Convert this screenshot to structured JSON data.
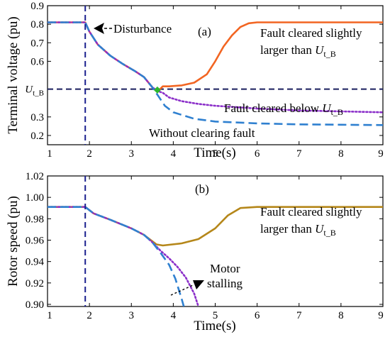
{
  "chart_data": [
    {
      "type": "line",
      "panel_label": "(a)",
      "xlabel": "Time(s)",
      "ylabel": "Terminal voltage (pu)",
      "xlim": [
        1,
        9
      ],
      "ylim": [
        0.15,
        0.9
      ],
      "xticks": [
        1,
        2,
        3,
        4,
        5,
        6,
        7,
        8,
        9
      ],
      "yticks": [
        {
          "value": 0.9,
          "label": "0.9"
        },
        {
          "value": 0.8,
          "label": "0.8"
        },
        {
          "value": 0.7,
          "label": "0.7"
        },
        {
          "value": 0.6,
          "label": "0.6"
        },
        {
          "value": 0.45,
          "label": "U_t_B"
        },
        {
          "value": 0.3,
          "label": "0.3"
        },
        {
          "value": 0.2,
          "label": "0.2"
        }
      ],
      "threshold": {
        "label": "U_t_B",
        "value": 0.45,
        "color": "#1a1f5e"
      },
      "disturbance_time": 1.9,
      "clear_point": {
        "x": 3.62,
        "y": 0.445,
        "color": "#2db82d"
      },
      "series": [
        {
          "name": "Fault cleared slightly larger than U_t_B",
          "color": "#f26522",
          "style": "solid",
          "points": [
            [
              1,
              0.81
            ],
            [
              1.9,
              0.81
            ],
            [
              2.0,
              0.76
            ],
            [
              2.2,
              0.69
            ],
            [
              2.5,
              0.63
            ],
            [
              2.8,
              0.585
            ],
            [
              3.1,
              0.545
            ],
            [
              3.3,
              0.515
            ],
            [
              3.5,
              0.46
            ],
            [
              3.62,
              0.435
            ],
            [
              3.75,
              0.465
            ],
            [
              3.9,
              0.465
            ],
            [
              4.2,
              0.47
            ],
            [
              4.5,
              0.485
            ],
            [
              4.8,
              0.53
            ],
            [
              5.0,
              0.6
            ],
            [
              5.2,
              0.68
            ],
            [
              5.4,
              0.74
            ],
            [
              5.6,
              0.785
            ],
            [
              5.8,
              0.805
            ],
            [
              6.0,
              0.81
            ],
            [
              7,
              0.81
            ],
            [
              8,
              0.81
            ],
            [
              9,
              0.81
            ]
          ]
        },
        {
          "name": "Fault cleared below U_t_B",
          "color": "#8b2fc9",
          "style": "dotted",
          "points": [
            [
              1,
              0.81
            ],
            [
              1.9,
              0.81
            ],
            [
              2.0,
              0.76
            ],
            [
              2.2,
              0.69
            ],
            [
              2.5,
              0.63
            ],
            [
              2.8,
              0.585
            ],
            [
              3.1,
              0.545
            ],
            [
              3.3,
              0.515
            ],
            [
              3.5,
              0.46
            ],
            [
              3.62,
              0.44
            ],
            [
              3.75,
              0.43
            ],
            [
              3.9,
              0.405
            ],
            [
              4.2,
              0.385
            ],
            [
              4.6,
              0.37
            ],
            [
              5.0,
              0.36
            ],
            [
              6,
              0.345
            ],
            [
              7,
              0.335
            ],
            [
              8,
              0.33
            ],
            [
              9,
              0.325
            ]
          ]
        },
        {
          "name": "Without clearing fault",
          "color": "#2f80d0",
          "style": "dashed",
          "points": [
            [
              1,
              0.81
            ],
            [
              1.9,
              0.81
            ],
            [
              2.0,
              0.76
            ],
            [
              2.2,
              0.69
            ],
            [
              2.5,
              0.63
            ],
            [
              2.8,
              0.585
            ],
            [
              3.1,
              0.545
            ],
            [
              3.3,
              0.515
            ],
            [
              3.5,
              0.46
            ],
            [
              3.62,
              0.42
            ],
            [
              3.8,
              0.36
            ],
            [
              4.0,
              0.325
            ],
            [
              4.5,
              0.29
            ],
            [
              5.0,
              0.275
            ],
            [
              6,
              0.265
            ],
            [
              7,
              0.26
            ],
            [
              8,
              0.258
            ],
            [
              9,
              0.256
            ]
          ]
        }
      ],
      "annotations": [
        {
          "text": "Disturbance",
          "key": "disturbance"
        },
        {
          "text": "Fault cleared slightly",
          "key": "fault_slight_line1"
        },
        {
          "text": "larger than U_t_B",
          "key": "fault_slight_line2"
        },
        {
          "text": "Fault cleared below U_t_B",
          "key": "fault_below"
        },
        {
          "text": "Without clearing fault",
          "key": "without_clearing"
        }
      ]
    },
    {
      "type": "line",
      "panel_label": "(b)",
      "xlabel": "Time(s)",
      "ylabel": "Rotor speed (pu)",
      "xlim": [
        1,
        9
      ],
      "ylim": [
        0.898,
        1.02
      ],
      "xticks": [
        1,
        2,
        3,
        4,
        5,
        6,
        7,
        8,
        9
      ],
      "yticks": [
        {
          "value": 1.02,
          "label": "1.02"
        },
        {
          "value": 1.0,
          "label": "1.00"
        },
        {
          "value": 0.98,
          "label": "0.98"
        },
        {
          "value": 0.96,
          "label": "0.96"
        },
        {
          "value": 0.94,
          "label": "0.94"
        },
        {
          "value": 0.92,
          "label": "0.92"
        },
        {
          "value": 0.9,
          "label": "0.90"
        }
      ],
      "disturbance_time": 1.9,
      "series": [
        {
          "name": "Fault cleared slightly larger than U_t_B",
          "color": "#b5871a",
          "style": "solid",
          "points": [
            [
              1,
              0.991
            ],
            [
              1.9,
              0.991
            ],
            [
              2.1,
              0.985
            ],
            [
              2.5,
              0.979
            ],
            [
              3.0,
              0.971
            ],
            [
              3.3,
              0.965
            ],
            [
              3.6,
              0.956
            ],
            [
              3.75,
              0.955
            ],
            [
              4.2,
              0.957
            ],
            [
              4.6,
              0.961
            ],
            [
              5.0,
              0.971
            ],
            [
              5.3,
              0.983
            ],
            [
              5.6,
              0.99
            ],
            [
              6,
              0.991
            ],
            [
              7,
              0.991
            ],
            [
              8,
              0.991
            ],
            [
              9,
              0.991
            ]
          ]
        },
        {
          "name": "Motor stalling (dotted)",
          "color": "#8b2fc9",
          "style": "dotted",
          "points": [
            [
              1,
              0.991
            ],
            [
              1.9,
              0.991
            ],
            [
              2.1,
              0.985
            ],
            [
              2.5,
              0.979
            ],
            [
              3.0,
              0.971
            ],
            [
              3.3,
              0.965
            ],
            [
              3.5,
              0.958
            ],
            [
              3.7,
              0.95
            ],
            [
              3.9,
              0.943
            ],
            [
              4.1,
              0.935
            ],
            [
              4.3,
              0.925
            ],
            [
              4.5,
              0.91
            ],
            [
              4.6,
              0.898
            ]
          ]
        },
        {
          "name": "Motor stalling (dashed)",
          "color": "#2f80d0",
          "style": "dashed",
          "points": [
            [
              1,
              0.991
            ],
            [
              1.9,
              0.991
            ],
            [
              2.1,
              0.985
            ],
            [
              2.5,
              0.979
            ],
            [
              3.0,
              0.971
            ],
            [
              3.3,
              0.965
            ],
            [
              3.5,
              0.958
            ],
            [
              3.7,
              0.948
            ],
            [
              3.9,
              0.937
            ],
            [
              4.05,
              0.924
            ],
            [
              4.2,
              0.905
            ],
            [
              4.25,
              0.898
            ]
          ]
        }
      ],
      "annotations": [
        {
          "text": "Fault cleared slightly",
          "key": "fault_slight_line1"
        },
        {
          "text": "larger than U_t_B",
          "key": "fault_slight_line2"
        },
        {
          "text": "Motor",
          "key": "motor"
        },
        {
          "text": "stalling",
          "key": "stalling"
        }
      ]
    }
  ]
}
